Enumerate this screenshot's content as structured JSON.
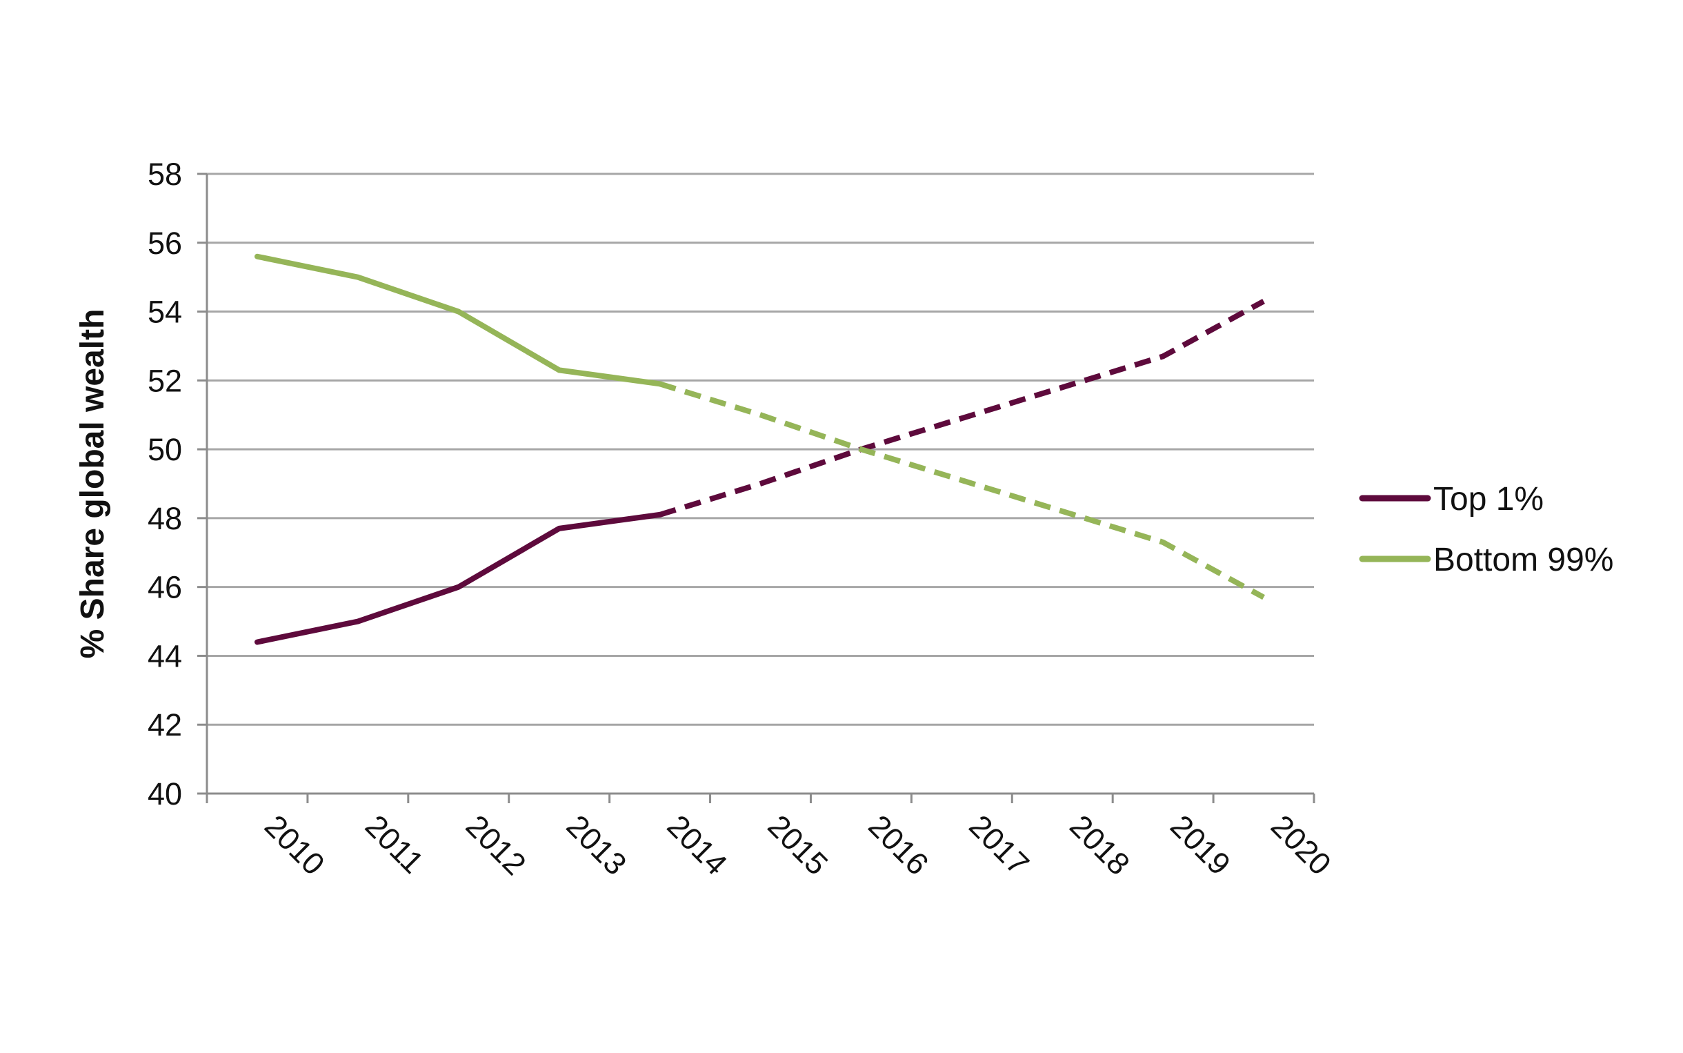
{
  "chart_data": {
    "type": "line",
    "title": "",
    "xlabel": "",
    "ylabel": "% Share global wealth",
    "x": [
      "2010",
      "2011",
      "2012",
      "2013",
      "2014",
      "2015",
      "2016",
      "2017",
      "2018",
      "2019",
      "2020"
    ],
    "ylim": [
      40,
      58
    ],
    "yticks": [
      "40",
      "42",
      "44",
      "46",
      "48",
      "50",
      "52",
      "54",
      "56",
      "58"
    ],
    "grid": "horizontal",
    "legend_position": "right",
    "series": [
      {
        "name": "Top 1%",
        "color": "#5e0a3c",
        "values": [
          44.4,
          45.0,
          46.0,
          47.7,
          48.1,
          49.0,
          50.0,
          50.9,
          51.8,
          52.7,
          54.3
        ],
        "projected_from": "2014"
      },
      {
        "name": "Bottom 99%",
        "color": "#95b558",
        "values": [
          55.6,
          55.0,
          54.0,
          52.3,
          51.9,
          51.0,
          50.0,
          49.1,
          48.2,
          47.3,
          45.7
        ],
        "projected_from": "2014"
      }
    ]
  }
}
